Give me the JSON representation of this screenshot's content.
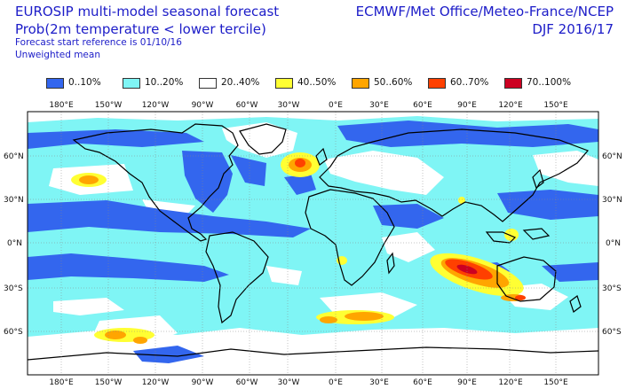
{
  "header": {
    "line1": "EUROSIP multi-model seasonal forecast",
    "line2": "Prob(2m temperature < lower tercile)",
    "line3": "Forecast start reference is 01/10/16",
    "line4": "Unweighted mean",
    "right1": "ECMWF/Met Office/Meteo-France/NCEP",
    "right2": "DJF 2016/17"
  },
  "legend": [
    {
      "label": "0..10%",
      "color": "#3366ee"
    },
    {
      "label": "10..20%",
      "color": "#7ff5f5"
    },
    {
      "label": "20..40%",
      "color": "#ffffff"
    },
    {
      "label": "40..50%",
      "color": "#ffff33"
    },
    {
      "label": "50..60%",
      "color": "#ffa500"
    },
    {
      "label": "60..70%",
      "color": "#ff4000"
    },
    {
      "label": "70..100%",
      "color": "#cc0022"
    }
  ],
  "axes": {
    "top": [
      "180°E",
      "150°W",
      "120°W",
      "90°W",
      "60°W",
      "30°W",
      "0°E",
      "30°E",
      "60°E",
      "90°E",
      "120°E",
      "150°E"
    ],
    "bottom": [
      "180°E",
      "150°W",
      "120°W",
      "90°W",
      "60°W",
      "30°W",
      "0°E",
      "30°E",
      "60°E",
      "90°E",
      "120°E",
      "150°E"
    ],
    "left": [
      "60°N",
      "30°N",
      "0°N",
      "30°S",
      "60°S"
    ],
    "right": [
      "60°N",
      "30°N",
      "0°N",
      "30°S",
      "60°S"
    ]
  }
}
